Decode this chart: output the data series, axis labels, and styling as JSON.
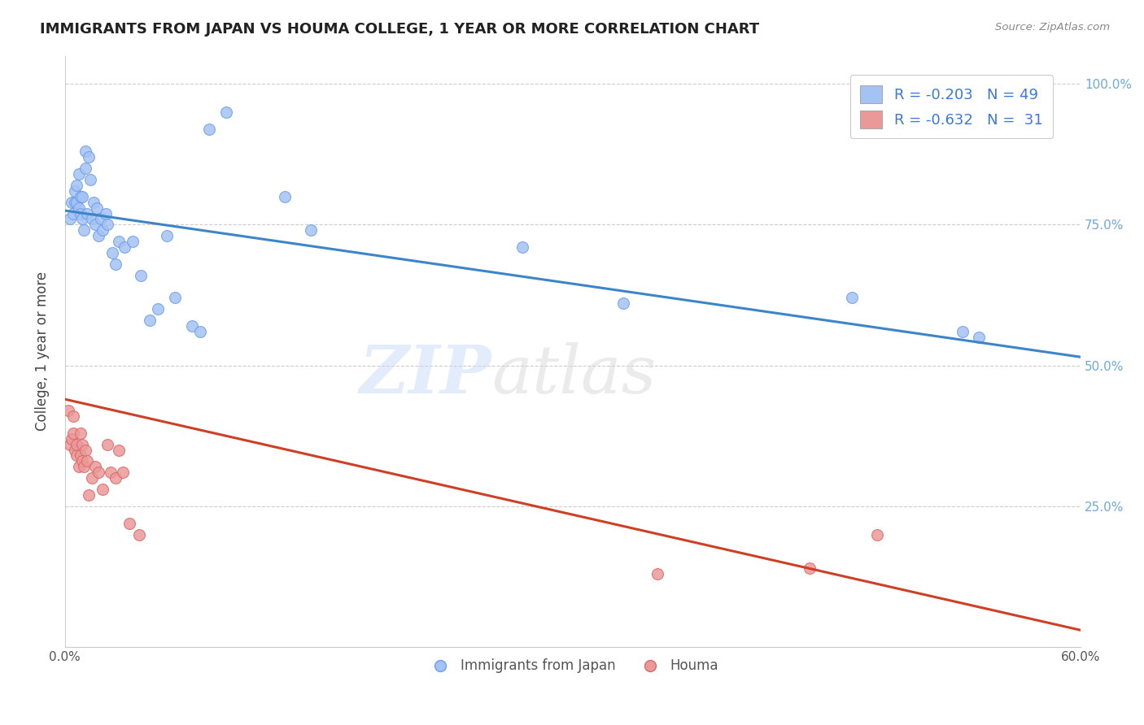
{
  "title": "IMMIGRANTS FROM JAPAN VS HOUMA COLLEGE, 1 YEAR OR MORE CORRELATION CHART",
  "source": "Source: ZipAtlas.com",
  "ylabel": "College, 1 year or more",
  "xlim": [
    0.0,
    0.6
  ],
  "ylim": [
    0.0,
    1.05
  ],
  "blue_color": "#a4c2f4",
  "blue_edge_color": "#6d9eeb",
  "pink_color": "#ea9999",
  "pink_edge_color": "#e06666",
  "blue_line_color": "#3d85c8",
  "pink_line_color": "#cc4125",
  "legend_R_blue": "R = -0.203",
  "legend_N_blue": "N = 49",
  "legend_R_pink": "R = -0.632",
  "legend_N_pink": "N =  31",
  "watermark_zip": "ZIP",
  "watermark_atlas": "atlas",
  "blue_scatter_x": [
    0.003,
    0.004,
    0.005,
    0.006,
    0.006,
    0.007,
    0.007,
    0.008,
    0.008,
    0.009,
    0.009,
    0.01,
    0.01,
    0.011,
    0.012,
    0.012,
    0.013,
    0.014,
    0.015,
    0.016,
    0.017,
    0.018,
    0.019,
    0.02,
    0.021,
    0.022,
    0.024,
    0.025,
    0.028,
    0.03,
    0.032,
    0.035,
    0.04,
    0.045,
    0.05,
    0.055,
    0.06,
    0.065,
    0.075,
    0.08,
    0.085,
    0.095,
    0.13,
    0.145,
    0.27,
    0.33,
    0.465,
    0.53,
    0.54
  ],
  "blue_scatter_y": [
    0.76,
    0.79,
    0.77,
    0.81,
    0.79,
    0.79,
    0.82,
    0.78,
    0.84,
    0.77,
    0.8,
    0.76,
    0.8,
    0.74,
    0.85,
    0.88,
    0.77,
    0.87,
    0.83,
    0.76,
    0.79,
    0.75,
    0.78,
    0.73,
    0.76,
    0.74,
    0.77,
    0.75,
    0.7,
    0.68,
    0.72,
    0.71,
    0.72,
    0.66,
    0.58,
    0.6,
    0.73,
    0.62,
    0.57,
    0.56,
    0.92,
    0.95,
    0.8,
    0.74,
    0.71,
    0.61,
    0.62,
    0.56,
    0.55
  ],
  "pink_scatter_x": [
    0.002,
    0.003,
    0.004,
    0.005,
    0.005,
    0.006,
    0.007,
    0.007,
    0.008,
    0.009,
    0.009,
    0.01,
    0.01,
    0.011,
    0.012,
    0.013,
    0.014,
    0.016,
    0.018,
    0.02,
    0.022,
    0.025,
    0.027,
    0.03,
    0.032,
    0.034,
    0.038,
    0.044,
    0.35,
    0.44,
    0.48
  ],
  "pink_scatter_y": [
    0.42,
    0.36,
    0.37,
    0.41,
    0.38,
    0.35,
    0.34,
    0.36,
    0.32,
    0.34,
    0.38,
    0.33,
    0.36,
    0.32,
    0.35,
    0.33,
    0.27,
    0.3,
    0.32,
    0.31,
    0.28,
    0.36,
    0.31,
    0.3,
    0.35,
    0.31,
    0.22,
    0.2,
    0.13,
    0.14,
    0.2
  ],
  "blue_trend_x": [
    0.0,
    0.6
  ],
  "blue_trend_y": [
    0.775,
    0.515
  ],
  "pink_trend_x": [
    0.0,
    0.6
  ],
  "pink_trend_y": [
    0.44,
    0.03
  ],
  "background_color": "#ffffff",
  "grid_color": "#cccccc",
  "x_tick_positions": [
    0.0,
    0.1,
    0.2,
    0.3,
    0.4,
    0.5,
    0.6
  ],
  "x_tick_labels": [
    "0.0%",
    "",
    "",
    "",
    "",
    "",
    "60.0%"
  ],
  "y_tick_positions": [
    0.0,
    0.25,
    0.5,
    0.75,
    1.0
  ],
  "y_tick_labels_right": [
    "",
    "25.0%",
    "50.0%",
    "75.0%",
    "100.0%"
  ]
}
